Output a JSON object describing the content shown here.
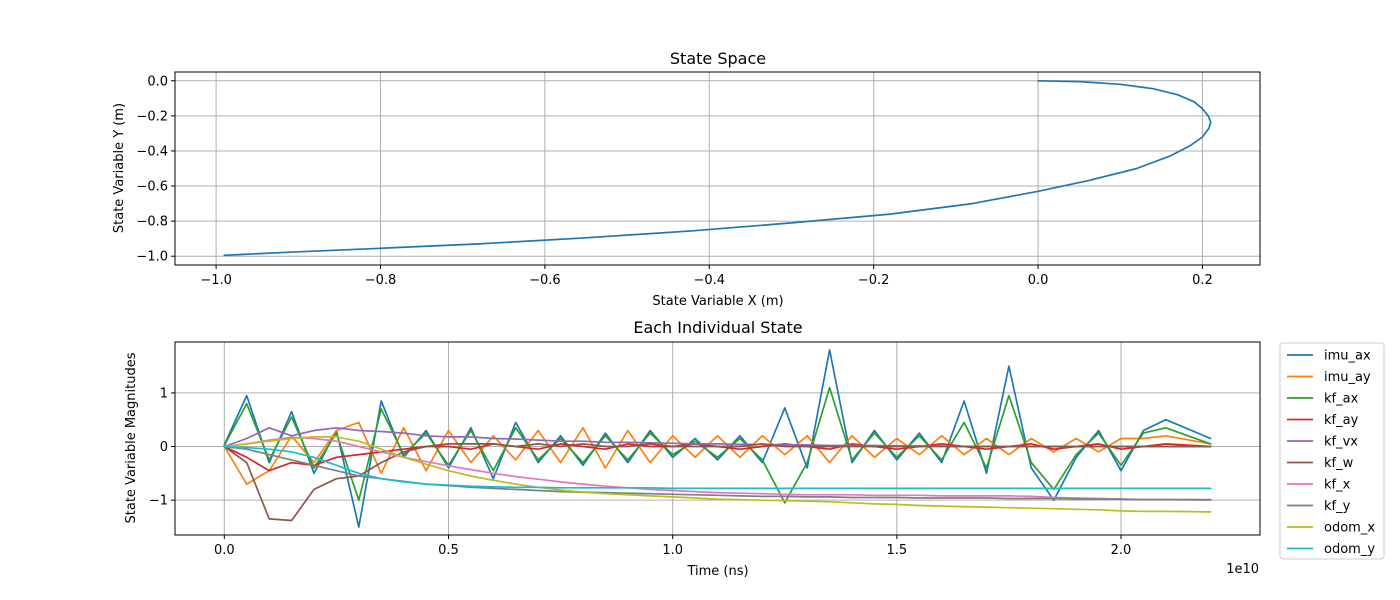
{
  "chart_data": [
    {
      "type": "line",
      "title": "State Space",
      "xlabel": "State Variable X (m)",
      "ylabel": "State Variable Y (m)",
      "xlim": [
        -1.05,
        0.27
      ],
      "ylim": [
        -1.05,
        0.05
      ],
      "xticks": [
        -1.0,
        -0.8,
        -0.6,
        -0.4,
        -0.2,
        0.0,
        0.2
      ],
      "xtick_labels": [
        "−1.0",
        "−0.8",
        "−0.6",
        "−0.4",
        "−0.2",
        "0.0",
        "0.2"
      ],
      "yticks": [
        0.0,
        -0.2,
        -0.4,
        -0.6,
        -0.8,
        -1.0
      ],
      "ytick_labels": [
        "0.0",
        "−0.2",
        "−0.4",
        "−0.6",
        "−0.8",
        "−1.0"
      ],
      "grid": true,
      "series": [
        {
          "color": "#1f77b4",
          "x": [
            0.0,
            0.05,
            0.1,
            0.14,
            0.17,
            0.19,
            0.2,
            0.207,
            0.21,
            0.208,
            0.2,
            0.185,
            0.16,
            0.12,
            0.06,
            0.0,
            -0.08,
            -0.18,
            -0.3,
            -0.42,
            -0.55,
            -0.68,
            -0.8,
            -0.9,
            -0.97,
            -0.99
          ],
          "y": [
            0.0,
            -0.005,
            -0.02,
            -0.045,
            -0.08,
            -0.12,
            -0.16,
            -0.2,
            -0.235,
            -0.27,
            -0.32,
            -0.37,
            -0.43,
            -0.5,
            -0.57,
            -0.63,
            -0.7,
            -0.76,
            -0.81,
            -0.855,
            -0.895,
            -0.93,
            -0.955,
            -0.975,
            -0.99,
            -0.995
          ]
        }
      ]
    },
    {
      "type": "line",
      "title": "Each Individual State",
      "xlabel": "Time (ns)",
      "ylabel": "State Variable Magnitudes",
      "x_offset_label": "1e10",
      "xlim": [
        -0.11,
        2.31
      ],
      "ylim": [
        -1.65,
        1.95
      ],
      "xticks": [
        0.0,
        0.5,
        1.0,
        1.5,
        2.0
      ],
      "xtick_labels": [
        "0.0",
        "0.5",
        "1.0",
        "1.5",
        "2.0"
      ],
      "yticks": [
        1,
        0,
        -1
      ],
      "ytick_labels": [
        "1",
        "0",
        "−1"
      ],
      "grid": true,
      "legend_position": "outside-right",
      "x": [
        0.0,
        0.05,
        0.1,
        0.15,
        0.2,
        0.25,
        0.3,
        0.35,
        0.4,
        0.45,
        0.5,
        0.55,
        0.6,
        0.65,
        0.7,
        0.75,
        0.8,
        0.85,
        0.9,
        0.95,
        1.0,
        1.05,
        1.1,
        1.15,
        1.2,
        1.25,
        1.3,
        1.35,
        1.4,
        1.45,
        1.5,
        1.55,
        1.6,
        1.65,
        1.7,
        1.75,
        1.8,
        1.85,
        1.9,
        1.95,
        2.0,
        2.05,
        2.1,
        2.2
      ],
      "series": [
        {
          "name": "imu_ax",
          "color": "#1f77b4",
          "values": [
            0.03,
            0.95,
            -0.3,
            0.65,
            -0.5,
            0.3,
            -1.5,
            0.85,
            -0.2,
            0.3,
            -0.4,
            0.35,
            -0.6,
            0.45,
            -0.3,
            0.2,
            -0.35,
            0.25,
            -0.3,
            0.3,
            -0.2,
            0.15,
            -0.25,
            0.2,
            -0.3,
            0.72,
            -0.4,
            1.8,
            -0.3,
            0.3,
            -0.25,
            0.25,
            -0.3,
            0.85,
            -0.5,
            1.5,
            -0.4,
            -1.0,
            -0.2,
            0.3,
            -0.45,
            0.3,
            0.5,
            0.15
          ]
        },
        {
          "name": "imu_ay",
          "color": "#ff7f0e",
          "values": [
            0.0,
            -0.7,
            -0.45,
            0.2,
            -0.3,
            0.3,
            0.45,
            -0.5,
            0.35,
            -0.45,
            0.3,
            -0.3,
            0.2,
            -0.25,
            0.3,
            -0.3,
            0.35,
            -0.4,
            0.3,
            -0.3,
            0.2,
            -0.2,
            0.2,
            -0.2,
            0.2,
            -0.15,
            0.2,
            -0.3,
            0.2,
            -0.2,
            0.15,
            -0.15,
            0.2,
            -0.15,
            0.15,
            -0.15,
            0.15,
            -0.1,
            0.15,
            -0.1,
            0.15,
            0.15,
            0.2,
            0.05
          ]
        },
        {
          "name": "kf_ax",
          "color": "#2ca02c",
          "values": [
            0.02,
            0.8,
            -0.25,
            0.55,
            -0.4,
            0.25,
            -1.0,
            0.7,
            -0.15,
            0.25,
            -0.35,
            0.3,
            -0.45,
            0.35,
            -0.25,
            0.15,
            -0.3,
            0.2,
            -0.25,
            0.25,
            -0.15,
            0.1,
            -0.2,
            0.15,
            -0.25,
            -1.05,
            -0.3,
            1.1,
            -0.25,
            0.25,
            -0.2,
            0.2,
            -0.25,
            0.45,
            -0.4,
            0.95,
            -0.3,
            -0.8,
            -0.15,
            0.25,
            -0.35,
            0.25,
            0.35,
            0.05
          ]
        },
        {
          "name": "kf_ay",
          "color": "#d62728",
          "values": [
            0.0,
            -0.2,
            -0.45,
            -0.3,
            -0.35,
            -0.2,
            -0.15,
            -0.1,
            -0.05,
            0.0,
            0.0,
            -0.05,
            0.05,
            0.0,
            -0.05,
            0.05,
            0.0,
            -0.05,
            0.05,
            0.0,
            0.0,
            0.05,
            0.0,
            -0.05,
            0.0,
            0.05,
            0.0,
            -0.05,
            0.05,
            0.0,
            -0.05,
            0.0,
            0.05,
            0.0,
            -0.05,
            0.0,
            0.05,
            -0.05,
            0.0,
            0.05,
            -0.05,
            0.0,
            0.05,
            0.0
          ]
        },
        {
          "name": "kf_vx",
          "color": "#9467bd",
          "values": [
            0.0,
            0.15,
            0.35,
            0.2,
            0.3,
            0.35,
            0.3,
            0.28,
            0.25,
            0.2,
            0.18,
            0.18,
            0.15,
            0.14,
            0.12,
            0.1,
            0.1,
            0.08,
            0.08,
            0.07,
            0.06,
            0.05,
            0.05,
            0.04,
            0.04,
            0.03,
            0.03,
            0.02,
            0.02,
            0.02,
            0.01,
            0.01,
            0.01,
            0.0,
            0.0,
            0.0,
            0.0,
            0.0,
            0.0,
            0.0,
            0.0,
            0.0,
            0.0,
            0.0
          ]
        },
        {
          "name": "kf_w",
          "color": "#8c564b",
          "values": [
            0.0,
            -0.3,
            -1.35,
            -1.38,
            -0.8,
            -0.6,
            -0.55,
            -0.3,
            -0.1,
            0.0,
            0.05,
            0.05,
            0.05,
            0.0,
            0.05,
            0.0,
            0.05,
            0.0,
            0.0,
            0.05,
            0.0,
            0.0,
            0.0,
            0.0,
            0.05,
            0.0,
            0.0,
            0.0,
            0.0,
            0.0,
            0.0,
            0.0,
            0.0,
            0.0,
            0.0,
            0.0,
            0.0,
            0.0,
            0.0,
            0.0,
            0.0,
            0.0,
            0.0,
            0.0
          ]
        },
        {
          "name": "kf_x",
          "color": "#e377c2",
          "values": [
            0.0,
            0.05,
            0.12,
            0.17,
            0.15,
            0.1,
            0.0,
            -0.1,
            -0.2,
            -0.28,
            -0.36,
            -0.43,
            -0.5,
            -0.56,
            -0.61,
            -0.66,
            -0.7,
            -0.74,
            -0.77,
            -0.8,
            -0.82,
            -0.84,
            -0.86,
            -0.87,
            -0.88,
            -0.89,
            -0.9,
            -0.9,
            -0.9,
            -0.91,
            -0.91,
            -0.91,
            -0.92,
            -0.92,
            -0.92,
            -0.92,
            -0.93,
            -0.95,
            -0.96,
            -0.97,
            -0.98,
            -0.99,
            -0.99,
            -1.0
          ]
        },
        {
          "name": "kf_y",
          "color": "#7f7f7f",
          "values": [
            0.0,
            -0.05,
            -0.15,
            -0.25,
            -0.35,
            -0.45,
            -0.55,
            -0.6,
            -0.65,
            -0.7,
            -0.73,
            -0.76,
            -0.78,
            -0.8,
            -0.82,
            -0.84,
            -0.85,
            -0.86,
            -0.87,
            -0.88,
            -0.89,
            -0.9,
            -0.91,
            -0.92,
            -0.93,
            -0.93,
            -0.94,
            -0.94,
            -0.95,
            -0.95,
            -0.95,
            -0.96,
            -0.96,
            -0.96,
            -0.96,
            -0.97,
            -0.97,
            -0.97,
            -0.98,
            -0.98,
            -0.98,
            -0.99,
            -0.99,
            -0.99
          ]
        },
        {
          "name": "odom_x",
          "color": "#bcbd22",
          "values": [
            0.0,
            0.05,
            0.1,
            0.15,
            0.18,
            0.18,
            0.1,
            -0.05,
            -0.2,
            -0.33,
            -0.45,
            -0.55,
            -0.63,
            -0.7,
            -0.76,
            -0.81,
            -0.85,
            -0.88,
            -0.9,
            -0.92,
            -0.94,
            -0.96,
            -0.98,
            -0.99,
            -1.0,
            -1.01,
            -1.02,
            -1.03,
            -1.05,
            -1.07,
            -1.08,
            -1.1,
            -1.11,
            -1.12,
            -1.13,
            -1.14,
            -1.15,
            -1.16,
            -1.17,
            -1.18,
            -1.2,
            -1.21,
            -1.21,
            -1.22
          ]
        },
        {
          "name": "odom_y",
          "color": "#17becf",
          "values": [
            0.0,
            -0.02,
            -0.05,
            -0.1,
            -0.2,
            -0.35,
            -0.5,
            -0.6,
            -0.66,
            -0.7,
            -0.72,
            -0.74,
            -0.75,
            -0.76,
            -0.76,
            -0.77,
            -0.77,
            -0.77,
            -0.77,
            -0.77,
            -0.78,
            -0.78,
            -0.78,
            -0.78,
            -0.78,
            -0.78,
            -0.78,
            -0.78,
            -0.78,
            -0.78,
            -0.78,
            -0.78,
            -0.78,
            -0.78,
            -0.78,
            -0.78,
            -0.78,
            -0.78,
            -0.78,
            -0.78,
            -0.78,
            -0.78,
            -0.78,
            -0.78
          ]
        }
      ]
    }
  ]
}
